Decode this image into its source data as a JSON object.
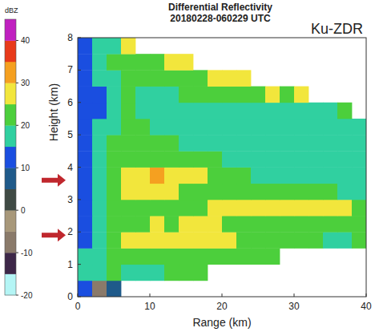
{
  "chart_data": {
    "type": "heatmap",
    "title": "Differential Reflectivity",
    "subtitle": "20180228-060229 UTC",
    "annotation": "Ku-ZDR",
    "xlabel": "Range (km)",
    "ylabel": "Height (km)",
    "xlim": [
      0,
      40
    ],
    "ylim": [
      0,
      8
    ],
    "xticks": [
      0,
      10,
      20,
      30,
      40
    ],
    "yticks": [
      0,
      1,
      2,
      3,
      4,
      5,
      6,
      7,
      8
    ],
    "grid": false,
    "x_edges": [
      0,
      2,
      4,
      6,
      8,
      10,
      12,
      14,
      16,
      18,
      20,
      22,
      24,
      26,
      28,
      30,
      32,
      34,
      36,
      38,
      40
    ],
    "y_edges": [
      0,
      0.5,
      1,
      1.5,
      2,
      2.5,
      3,
      3.5,
      4,
      4.5,
      5,
      5.5,
      6,
      6.5,
      7,
      7.5,
      8
    ],
    "cells": [
      [
        14,
        -8,
        5,
        null,
        null,
        null,
        null,
        null,
        null,
        null,
        null,
        null,
        null,
        null,
        null,
        null,
        null,
        null,
        null,
        null
      ],
      [
        16,
        18,
        20,
        18,
        17,
        19,
        20,
        21,
        22,
        null,
        null,
        null,
        null,
        null,
        null,
        null,
        null,
        null,
        null,
        null
      ],
      [
        15,
        19,
        21,
        22,
        23,
        24,
        23,
        22,
        23,
        22,
        21,
        20,
        20,
        21,
        null,
        null,
        null,
        null,
        null,
        null
      ],
      [
        14,
        18,
        22,
        25,
        27,
        28,
        27,
        26,
        27,
        26,
        25,
        23,
        22,
        21,
        20,
        20,
        20,
        19,
        19,
        20
      ],
      [
        13,
        16,
        20,
        23,
        24,
        25,
        24,
        25,
        26,
        25,
        24,
        24,
        23,
        23,
        22,
        23,
        22,
        22,
        21,
        20
      ],
      [
        12,
        16,
        20,
        22,
        21,
        21,
        21,
        22,
        24,
        25,
        26,
        27,
        27,
        28,
        27,
        28,
        27,
        26,
        25,
        24
      ],
      [
        12,
        17,
        22,
        25,
        26,
        26,
        25,
        24,
        23,
        22,
        22,
        21,
        20,
        20,
        21,
        20,
        21,
        20,
        19,
        19
      ],
      [
        12,
        18,
        23,
        27,
        29,
        30,
        29,
        27,
        26,
        24,
        22,
        20,
        19,
        18,
        17,
        17,
        18,
        17,
        16,
        16
      ],
      [
        12,
        16,
        21,
        23,
        24,
        24,
        23,
        22,
        21,
        20,
        19,
        18,
        17,
        17,
        16,
        16,
        16,
        17,
        16,
        16
      ],
      [
        12,
        16,
        20,
        22,
        21,
        20,
        20,
        19,
        18,
        17,
        16,
        16,
        15,
        15,
        16,
        15,
        16,
        15,
        16,
        16
      ],
      [
        11,
        15,
        19,
        21,
        20,
        19,
        18,
        19,
        17,
        16,
        15,
        16,
        15,
        16,
        15,
        16,
        16,
        17,
        16,
        18
      ],
      [
        11,
        14,
        18,
        20,
        19,
        18,
        17,
        18,
        17,
        16,
        17,
        18,
        16,
        17,
        16,
        18,
        17,
        19,
        22,
        null
      ],
      [
        11,
        14,
        19,
        20,
        19,
        18,
        19,
        20,
        21,
        20,
        22,
        21,
        23,
        26,
        24,
        27,
        null,
        null,
        null,
        null
      ],
      [
        12,
        15,
        19,
        21,
        20,
        20,
        21,
        22,
        24,
        27,
        26,
        28,
        null,
        null,
        null,
        null,
        null,
        null,
        null,
        null
      ],
      [
        12,
        16,
        20,
        22,
        21,
        24,
        26,
        28,
        null,
        null,
        null,
        null,
        null,
        null,
        null,
        null,
        null,
        null,
        null,
        null
      ],
      [
        13,
        15,
        18,
        25,
        null,
        null,
        null,
        null,
        null,
        null,
        null,
        null,
        null,
        null,
        null,
        null,
        null,
        null,
        null,
        null
      ]
    ],
    "colorbar": {
      "label": "dBZ",
      "range": [
        -20,
        45
      ],
      "ticks": [
        -20,
        -10,
        0,
        10,
        20,
        30,
        40
      ],
      "colors": [
        "#b4f5f5",
        "#3d2748",
        "#8a7a6a",
        "#a8987a",
        "#3f4a44",
        "#1f5a8a",
        "#1a4ee0",
        "#30d0a0",
        "#4ccf3c",
        "#f2e63c",
        "#f5a020",
        "#e83a1a",
        "#c020c0"
      ]
    },
    "annotation_arrows": [
      3.6,
      1.9
    ]
  }
}
